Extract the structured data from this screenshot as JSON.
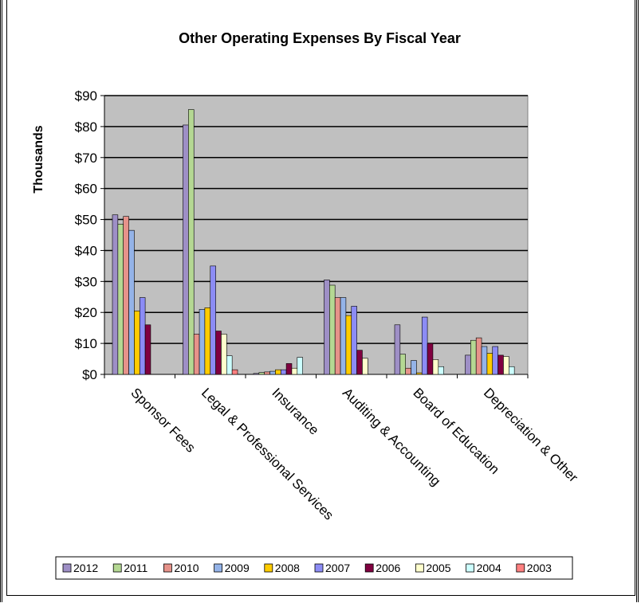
{
  "chart_data": {
    "type": "bar",
    "title": "Other Operating Expenses By Fiscal Year",
    "xlabel": "",
    "ylabel": "Thousands",
    "ylim": [
      0,
      90
    ],
    "y_ticks": [
      "$0",
      "$10",
      "$20",
      "$30",
      "$40",
      "$50",
      "$60",
      "$70",
      "$80",
      "$90"
    ],
    "grid": true,
    "legend_position": "bottom",
    "categories": [
      "Sponsor Fees",
      "Legal & Professional Services",
      "Insurance",
      "Auditing & Accounting",
      "Board of Education",
      "Depreciation & Other"
    ],
    "series": [
      {
        "name": "2012",
        "color": "#9e8fc6",
        "values": [
          51.5,
          80.5,
          0.3,
          30.5,
          16,
          6.2
        ]
      },
      {
        "name": "2011",
        "color": "#b5d893",
        "values": [
          48.5,
          85.5,
          0.6,
          28.8,
          6.5,
          11
        ]
      },
      {
        "name": "2010",
        "color": "#e6928a",
        "values": [
          51,
          13,
          0.8,
          24.8,
          2,
          11.8
        ]
      },
      {
        "name": "2009",
        "color": "#94b3e8",
        "values": [
          46.5,
          21,
          1,
          24.8,
          4.5,
          9
        ]
      },
      {
        "name": "2008",
        "color": "#ffcc00",
        "values": [
          20.5,
          21.5,
          1.5,
          19,
          0.5,
          6.8
        ]
      },
      {
        "name": "2007",
        "color": "#8c8cf5",
        "values": [
          24.8,
          35,
          1.5,
          22,
          18.5,
          9
        ]
      },
      {
        "name": "2006",
        "color": "#800040",
        "values": [
          16,
          14,
          3.5,
          7.8,
          10,
          6.2
        ]
      },
      {
        "name": "2005",
        "color": "#ffffcc",
        "values": [
          0,
          13,
          2,
          5.2,
          4.8,
          5.8
        ]
      },
      {
        "name": "2004",
        "color": "#ccffff",
        "values": [
          0,
          6,
          5.5,
          0,
          2.5,
          2.5
        ]
      },
      {
        "name": "2003",
        "color": "#ff8080",
        "values": [
          0,
          1.5,
          0,
          0,
          0,
          0
        ]
      }
    ]
  }
}
